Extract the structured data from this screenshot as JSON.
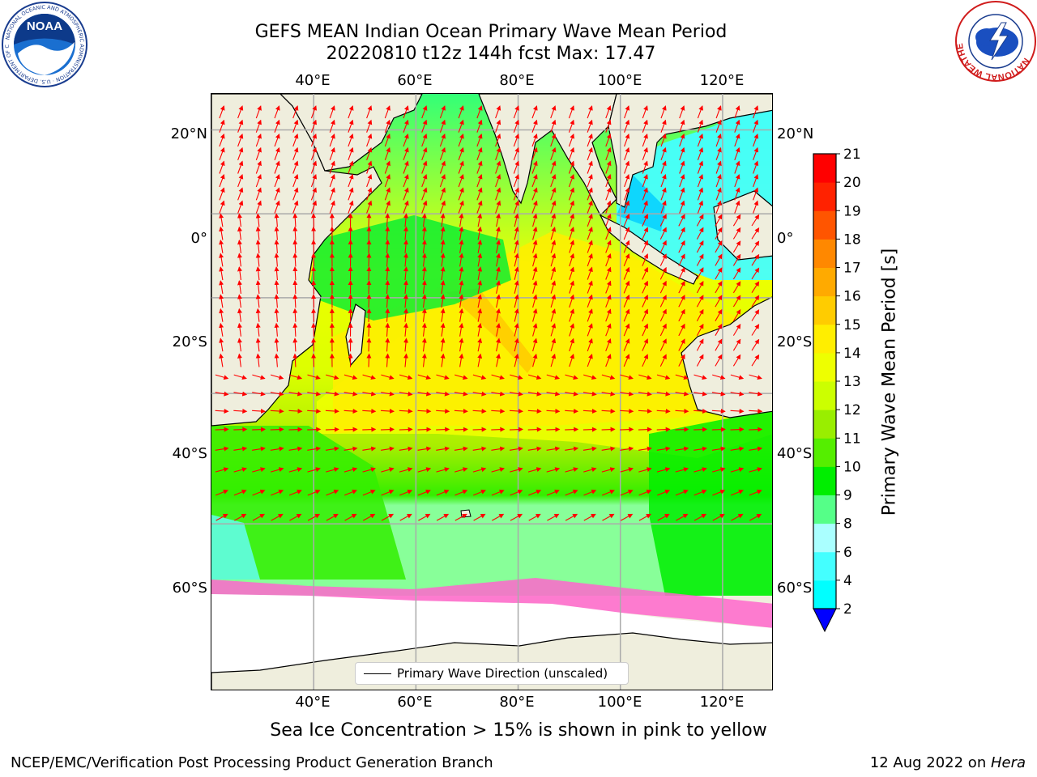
{
  "header": {
    "title_line1": "GEFS MEAN Indian Ocean Primary Wave Mean Period",
    "title_line2": "20220810 t12z 144h fcst   Max: 17.47"
  },
  "map": {
    "lon_ticks": [
      "40°E",
      "60°E",
      "80°E",
      "100°E",
      "120°E"
    ],
    "lat_ticks": [
      "20°N",
      "0°",
      "20°S",
      "40°S",
      "60°S"
    ],
    "lon_values": [
      40,
      60,
      80,
      100,
      120
    ],
    "lat_values": [
      20,
      0,
      -20,
      -40,
      -60
    ],
    "extent": {
      "lon_min": 20,
      "lon_max": 130,
      "lat_min": -75,
      "lat_max": 28
    },
    "legend": "Primary Wave Direction (unscaled)",
    "land_color": "#efeedd",
    "ice_color": "#ffffff",
    "arrow_color": "#ff0000",
    "max_value": 17.47
  },
  "colorbar": {
    "label": "Primary Wave Mean Period [s]",
    "tick_labels": [
      "2",
      "4",
      "6",
      "8",
      "9",
      "10",
      "11",
      "12",
      "13",
      "14",
      "15",
      "16",
      "17",
      "18",
      "19",
      "20",
      "21"
    ],
    "colors": [
      "#0066ff",
      "#00ccff",
      "#00ffff",
      "#44ffff",
      "#aaffff",
      "#55ff88",
      "#00ee00",
      "#55ee00",
      "#99ee00",
      "#ccff00",
      "#eeff00",
      "#ffee00",
      "#ffcc00",
      "#ffaa00",
      "#ff8800",
      "#ff5500",
      "#ff2200",
      "#ff0000"
    ],
    "under_color": "#0000ff"
  },
  "footnote": "Sea Ice Concentration > 15% is shown in pink to yellow",
  "footer": {
    "left": "NCEP/EMC/Verification Post Processing Product Generation Branch",
    "right_prefix": "12 Aug 2022 on ",
    "right_host": "Hera"
  },
  "logos": {
    "noaa_text": "NOAA",
    "noaa_ring": "NATIONAL OCEANIC AND ATMOSPHERIC ADMINISTRATION · U.S. DEPARTMENT OF COMMERCE",
    "nws_ring": "NATIONAL WEATHER SERVICE"
  }
}
